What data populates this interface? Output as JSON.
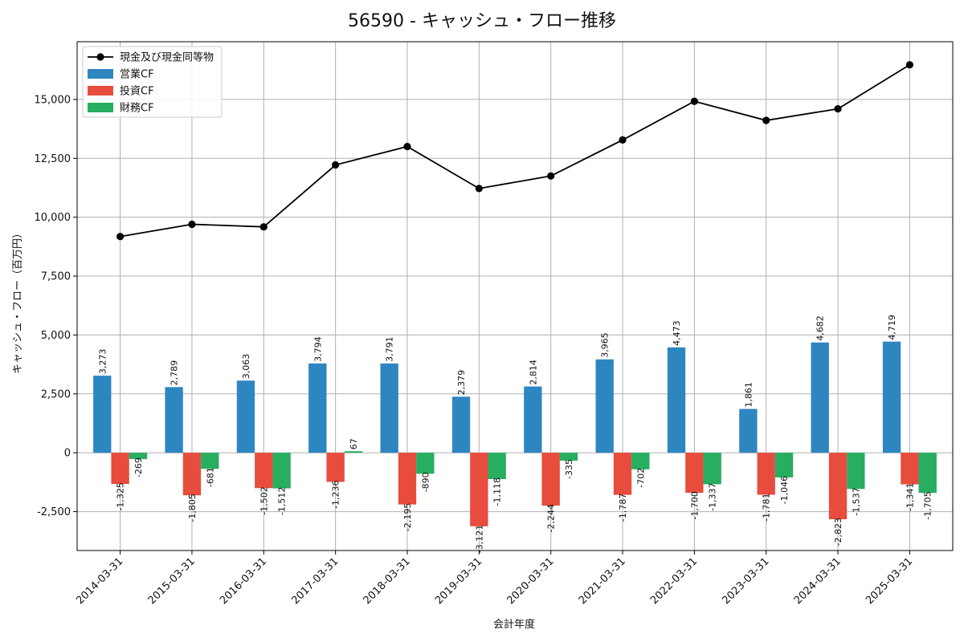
{
  "chart_data": {
    "type": "bar",
    "title": "56590 - キャッシュ・フロー推移",
    "xlabel": "会計年度",
    "ylabel": "キャッシュ・フロー（百万円）",
    "categories": [
      "2014-03-31",
      "2015-03-31",
      "2016-03-31",
      "2017-03-31",
      "2018-03-31",
      "2019-03-31",
      "2020-03-31",
      "2021-03-31",
      "2022-03-31",
      "2023-03-31",
      "2024-03-31",
      "2025-03-31"
    ],
    "ylim": [
      -4150,
      17450
    ],
    "yticks": [
      -2500,
      0,
      2500,
      5000,
      7500,
      10000,
      12500,
      15000
    ],
    "ytick_labels": [
      "-2,500",
      "0",
      "2,500",
      "5,000",
      "7,500",
      "10,000",
      "12,500",
      "15,000"
    ],
    "grid": true,
    "legend_position": "top-left",
    "series": [
      {
        "name": "現金及び現金同等物",
        "kind": "line",
        "color": "#000000",
        "values": [
          9180,
          9700,
          9590,
          12220,
          13000,
          11220,
          11750,
          13280,
          14920,
          14110,
          14600,
          16470
        ]
      },
      {
        "name": "営業CF",
        "kind": "bar",
        "color": "#2e86c1",
        "values": [
          3273,
          2789,
          3063,
          3794,
          3791,
          2379,
          2814,
          3965,
          4473,
          1861,
          4682,
          4719
        ],
        "labels": [
          "3,273",
          "2,789",
          "3,063",
          "3,794",
          "3,791",
          "2,379",
          "2,814",
          "3,965",
          "4,473",
          "1,861",
          "4,682",
          "4,719"
        ]
      },
      {
        "name": "投資CF",
        "kind": "bar",
        "color": "#e74c3c",
        "values": [
          -1325,
          -1805,
          -1502,
          -1236,
          -2195,
          -3121,
          -2244,
          -1787,
          -1700,
          -1781,
          -2823,
          -1341
        ],
        "labels": [
          "-1,325",
          "-1,805",
          "-1,502",
          "-1,236",
          "-2,195",
          "-3,121",
          "-2,244",
          "-1,787",
          "-1,700",
          "-1,781",
          "-2,823",
          "-1,341"
        ]
      },
      {
        "name": "財務CF",
        "kind": "bar",
        "color": "#27ae60",
        "values": [
          -269,
          -681,
          -1512,
          67,
          -890,
          -1118,
          -335,
          -702,
          -1337,
          -1046,
          -1537,
          -1705
        ],
        "labels": [
          "-269",
          "-681",
          "-1,512",
          "67",
          "-890",
          "-1,118",
          "-335",
          "-702",
          "-1,337",
          "-1,046",
          "-1,537",
          "-1,705"
        ]
      }
    ]
  }
}
